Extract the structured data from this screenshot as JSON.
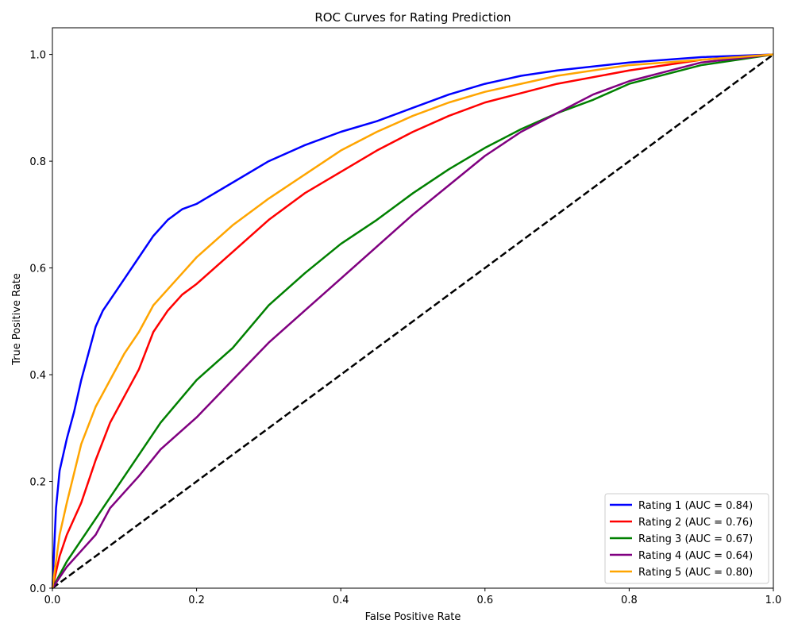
{
  "chart_data": {
    "type": "line",
    "title": "ROC Curves for Rating Prediction",
    "xlabel": "False Positive Rate",
    "ylabel": "True Positive Rate",
    "xlim": [
      0.0,
      1.0
    ],
    "ylim": [
      0.0,
      1.05
    ],
    "xticks": [
      0.0,
      0.2,
      0.4,
      0.6,
      0.8,
      1.0
    ],
    "yticks": [
      0.0,
      0.2,
      0.4,
      0.6,
      0.8,
      1.0
    ],
    "xtick_labels": [
      "0.0",
      "0.2",
      "0.4",
      "0.6",
      "0.8",
      "1.0"
    ],
    "ytick_labels": [
      "0.0",
      "0.2",
      "0.4",
      "0.6",
      "0.8",
      "1.0"
    ],
    "grid": false,
    "legend_position": "bottom-right",
    "series": [
      {
        "name": "Rating 1 (AUC = 0.84)",
        "color": "#0000ff",
        "x": [
          0,
          0.005,
          0.01,
          0.02,
          0.03,
          0.04,
          0.05,
          0.06,
          0.07,
          0.08,
          0.1,
          0.12,
          0.14,
          0.16,
          0.18,
          0.2,
          0.25,
          0.3,
          0.35,
          0.4,
          0.45,
          0.5,
          0.55,
          0.6,
          0.65,
          0.7,
          0.8,
          0.9,
          1.0
        ],
        "y": [
          0,
          0.15,
          0.22,
          0.28,
          0.33,
          0.39,
          0.44,
          0.49,
          0.52,
          0.54,
          0.58,
          0.62,
          0.66,
          0.69,
          0.71,
          0.72,
          0.76,
          0.8,
          0.83,
          0.855,
          0.875,
          0.9,
          0.925,
          0.945,
          0.96,
          0.97,
          0.985,
          0.995,
          1.0
        ]
      },
      {
        "name": "Rating 2 (AUC = 0.76)",
        "color": "#ff0000",
        "x": [
          0,
          0.01,
          0.02,
          0.04,
          0.06,
          0.08,
          0.1,
          0.12,
          0.14,
          0.16,
          0.18,
          0.2,
          0.25,
          0.3,
          0.35,
          0.4,
          0.45,
          0.5,
          0.55,
          0.6,
          0.7,
          0.8,
          0.9,
          1.0
        ],
        "y": [
          0,
          0.06,
          0.1,
          0.16,
          0.24,
          0.31,
          0.36,
          0.41,
          0.48,
          0.52,
          0.55,
          0.57,
          0.63,
          0.69,
          0.74,
          0.78,
          0.82,
          0.855,
          0.885,
          0.91,
          0.945,
          0.97,
          0.99,
          1.0
        ]
      },
      {
        "name": "Rating 3 (AUC = 0.67)",
        "color": "#008000",
        "x": [
          0,
          0.02,
          0.04,
          0.06,
          0.08,
          0.1,
          0.12,
          0.15,
          0.2,
          0.25,
          0.3,
          0.35,
          0.4,
          0.45,
          0.5,
          0.55,
          0.6,
          0.65,
          0.7,
          0.75,
          0.8,
          0.9,
          1.0
        ],
        "y": [
          0,
          0.05,
          0.09,
          0.13,
          0.17,
          0.21,
          0.25,
          0.31,
          0.39,
          0.45,
          0.53,
          0.59,
          0.645,
          0.69,
          0.74,
          0.785,
          0.825,
          0.86,
          0.89,
          0.915,
          0.945,
          0.98,
          1.0
        ]
      },
      {
        "name": "Rating 4 (AUC = 0.64)",
        "color": "#800080",
        "x": [
          0,
          0.02,
          0.04,
          0.06,
          0.08,
          0.1,
          0.12,
          0.15,
          0.2,
          0.25,
          0.3,
          0.35,
          0.4,
          0.45,
          0.5,
          0.55,
          0.6,
          0.65,
          0.7,
          0.75,
          0.8,
          0.9,
          1.0
        ],
        "y": [
          0,
          0.04,
          0.07,
          0.1,
          0.15,
          0.18,
          0.21,
          0.26,
          0.32,
          0.39,
          0.46,
          0.52,
          0.58,
          0.64,
          0.7,
          0.755,
          0.81,
          0.855,
          0.89,
          0.925,
          0.95,
          0.985,
          1.0
        ]
      },
      {
        "name": "Rating 5 (AUC = 0.80)",
        "color": "#ffa500",
        "x": [
          0,
          0.01,
          0.02,
          0.04,
          0.06,
          0.08,
          0.1,
          0.12,
          0.14,
          0.16,
          0.18,
          0.2,
          0.25,
          0.3,
          0.35,
          0.4,
          0.45,
          0.5,
          0.55,
          0.6,
          0.7,
          0.8,
          0.9,
          1.0
        ],
        "y": [
          0,
          0.1,
          0.16,
          0.27,
          0.34,
          0.39,
          0.44,
          0.48,
          0.53,
          0.56,
          0.59,
          0.62,
          0.68,
          0.73,
          0.775,
          0.82,
          0.855,
          0.885,
          0.91,
          0.93,
          0.96,
          0.98,
          0.99,
          1.0
        ]
      }
    ],
    "reference_line": {
      "x": [
        0,
        1
      ],
      "y": [
        0,
        1
      ],
      "color": "#000000",
      "style": "dashed"
    }
  }
}
